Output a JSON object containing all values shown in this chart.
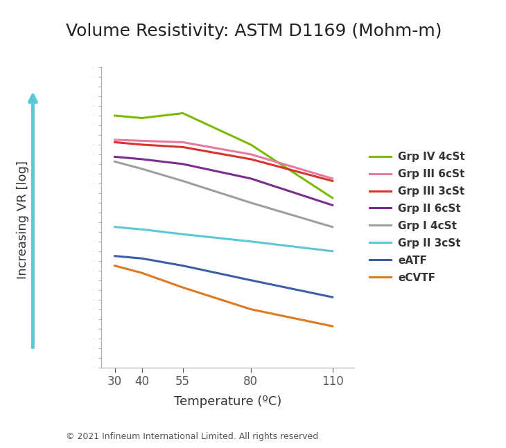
{
  "title": "Volume Resistivity: ASTM D1169 (Mohm-m)",
  "xlabel": "Temperature (ºC)",
  "ylabel": "Increasing VR [log]",
  "footer": "© 2021 Infineum International Limited. All rights reserved",
  "x_ticks": [
    30,
    40,
    55,
    80,
    110
  ],
  "series": [
    {
      "label": "Grp IV 4cSt",
      "color": "#7cb900",
      "y": [
        9.2,
        9.15,
        9.25,
        8.6,
        7.5
      ]
    },
    {
      "label": "Grp III 6cSt",
      "color": "#e879a0",
      "y": [
        8.7,
        8.68,
        8.65,
        8.4,
        7.9
      ]
    },
    {
      "label": "Grp III 3cSt",
      "color": "#d9342b",
      "y": [
        8.65,
        8.6,
        8.55,
        8.3,
        7.85
      ]
    },
    {
      "label": "Grp II 6cSt",
      "color": "#7b2d8b",
      "y": [
        8.35,
        8.3,
        8.2,
        7.9,
        7.35
      ]
    },
    {
      "label": "Grp I 4cSt",
      "color": "#9e9e9e",
      "y": [
        8.25,
        8.1,
        7.85,
        7.4,
        6.9
      ]
    },
    {
      "label": "Grp II 3cSt",
      "color": "#5bc8d5",
      "y": [
        6.9,
        6.85,
        6.75,
        6.6,
        6.4
      ]
    },
    {
      "label": "eATF",
      "color": "#3e5fa8",
      "y": [
        6.3,
        6.25,
        6.1,
        5.8,
        5.45
      ]
    },
    {
      "label": "eCVTF",
      "color": "#e07820",
      "y": [
        6.1,
        5.95,
        5.65,
        5.2,
        4.85
      ]
    }
  ],
  "ylim_min": 4.0,
  "ylim_max": 10.2,
  "background_color": "#ffffff",
  "arrow_color": "#5bc8d5",
  "title_fontsize": 18,
  "axis_label_fontsize": 13,
  "legend_fontsize": 11,
  "footer_fontsize": 9,
  "tick_fontsize": 12
}
